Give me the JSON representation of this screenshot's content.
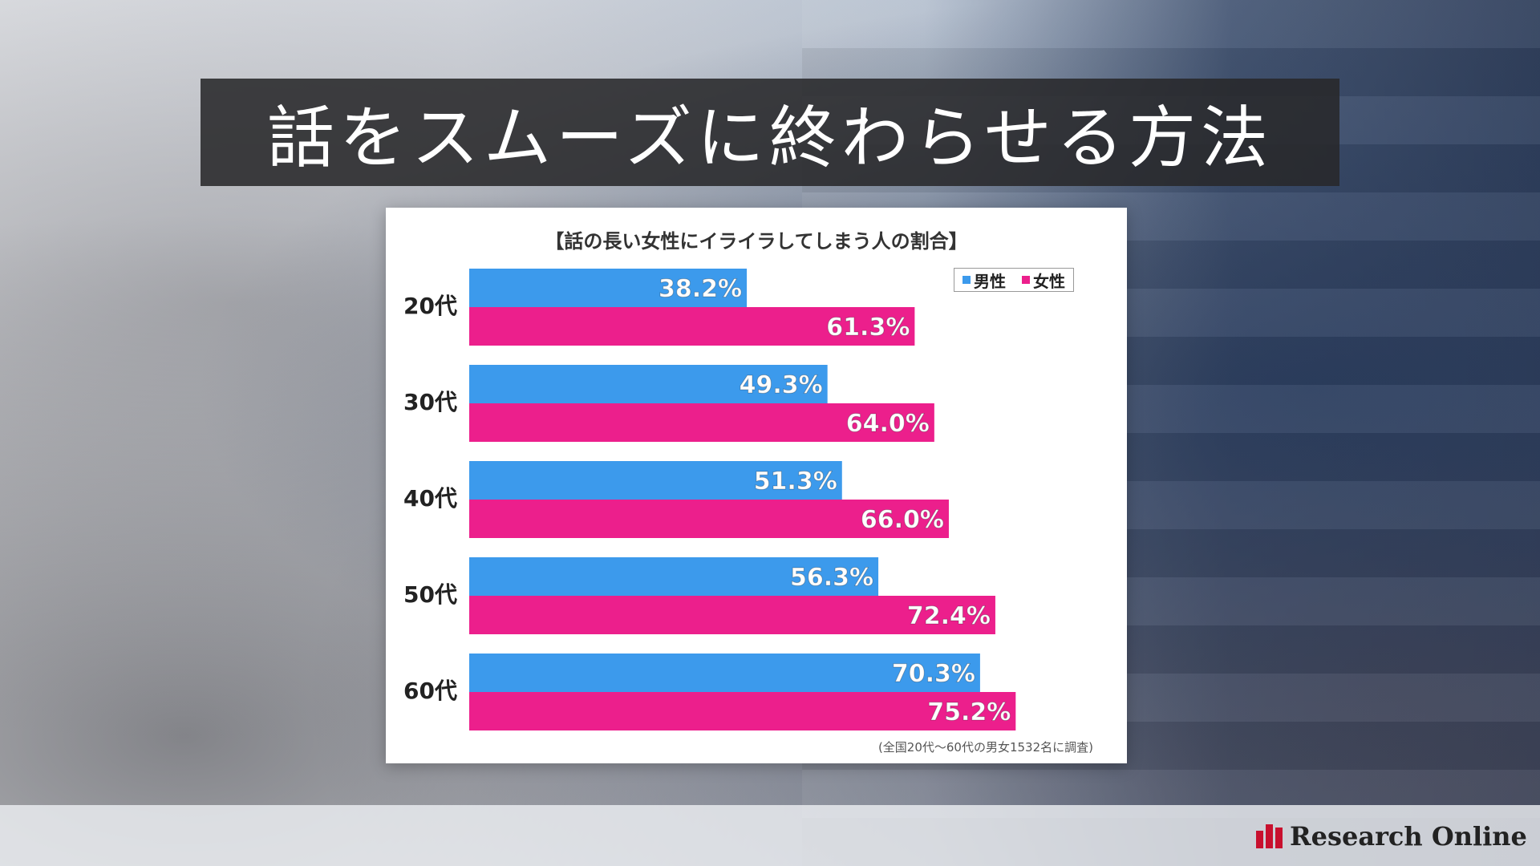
{
  "header": {
    "title": "話をスムーズに終わらせる方法"
  },
  "chart_data": {
    "type": "bar",
    "orientation": "horizontal",
    "title": "【話の長い女性にイライラしてしまう人の割合】",
    "categories": [
      "20代",
      "30代",
      "40代",
      "50代",
      "60代"
    ],
    "series": [
      {
        "name": "男性",
        "values": [
          38.2,
          49.3,
          51.3,
          56.3,
          70.3
        ],
        "labels": [
          "38.2%",
          "49.3%",
          "51.3%",
          "56.3%",
          "70.3%"
        ],
        "color": "#3c9aec"
      },
      {
        "name": "女性",
        "values": [
          61.3,
          64.0,
          66.0,
          72.4,
          75.2
        ],
        "labels": [
          "61.3%",
          "64.0%",
          "66.0%",
          "72.4%",
          "75.2%"
        ],
        "color": "#ec1f8c"
      }
    ],
    "legend_position": "top-right",
    "note": "(全国20代～60代の男女1532名に調査)",
    "grid": false
  },
  "brand": {
    "name": "Research Online",
    "color": "#c8102e"
  }
}
